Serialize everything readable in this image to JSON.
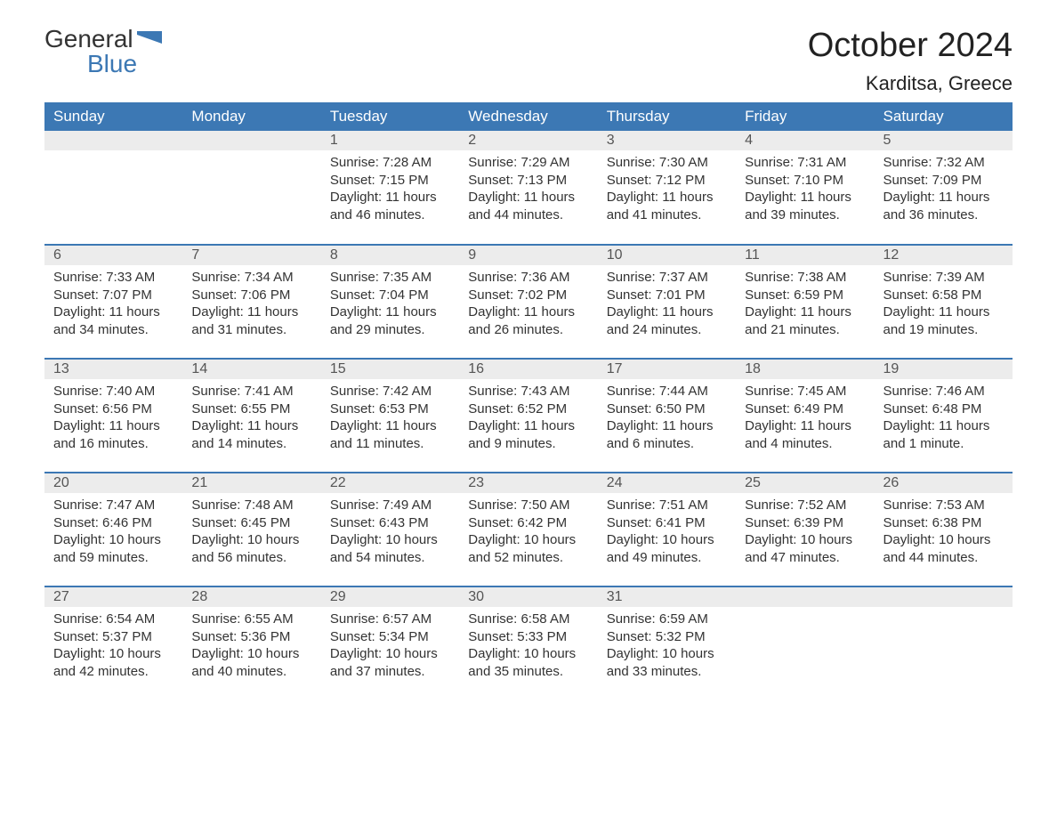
{
  "logo": {
    "text_top": "General",
    "text_bottom": "Blue",
    "flag_color": "#3c78b4"
  },
  "title": "October 2024",
  "location": "Karditsa, Greece",
  "colors": {
    "header_bg": "#3c78b4",
    "header_text": "#ffffff",
    "daynum_bg": "#ececec",
    "row_border": "#3c78b4",
    "body_text": "#333333",
    "page_bg": "#ffffff"
  },
  "typography": {
    "title_fontsize": 38,
    "location_fontsize": 22,
    "header_fontsize": 17,
    "daynum_fontsize": 16,
    "body_fontsize": 15
  },
  "weekdays": [
    "Sunday",
    "Monday",
    "Tuesday",
    "Wednesday",
    "Thursday",
    "Friday",
    "Saturday"
  ],
  "weeks": [
    [
      null,
      null,
      {
        "n": "1",
        "sunrise": "7:28 AM",
        "sunset": "7:15 PM",
        "daylight": "11 hours and 46 minutes."
      },
      {
        "n": "2",
        "sunrise": "7:29 AM",
        "sunset": "7:13 PM",
        "daylight": "11 hours and 44 minutes."
      },
      {
        "n": "3",
        "sunrise": "7:30 AM",
        "sunset": "7:12 PM",
        "daylight": "11 hours and 41 minutes."
      },
      {
        "n": "4",
        "sunrise": "7:31 AM",
        "sunset": "7:10 PM",
        "daylight": "11 hours and 39 minutes."
      },
      {
        "n": "5",
        "sunrise": "7:32 AM",
        "sunset": "7:09 PM",
        "daylight": "11 hours and 36 minutes."
      }
    ],
    [
      {
        "n": "6",
        "sunrise": "7:33 AM",
        "sunset": "7:07 PM",
        "daylight": "11 hours and 34 minutes."
      },
      {
        "n": "7",
        "sunrise": "7:34 AM",
        "sunset": "7:06 PM",
        "daylight": "11 hours and 31 minutes."
      },
      {
        "n": "8",
        "sunrise": "7:35 AM",
        "sunset": "7:04 PM",
        "daylight": "11 hours and 29 minutes."
      },
      {
        "n": "9",
        "sunrise": "7:36 AM",
        "sunset": "7:02 PM",
        "daylight": "11 hours and 26 minutes."
      },
      {
        "n": "10",
        "sunrise": "7:37 AM",
        "sunset": "7:01 PM",
        "daylight": "11 hours and 24 minutes."
      },
      {
        "n": "11",
        "sunrise": "7:38 AM",
        "sunset": "6:59 PM",
        "daylight": "11 hours and 21 minutes."
      },
      {
        "n": "12",
        "sunrise": "7:39 AM",
        "sunset": "6:58 PM",
        "daylight": "11 hours and 19 minutes."
      }
    ],
    [
      {
        "n": "13",
        "sunrise": "7:40 AM",
        "sunset": "6:56 PM",
        "daylight": "11 hours and 16 minutes."
      },
      {
        "n": "14",
        "sunrise": "7:41 AM",
        "sunset": "6:55 PM",
        "daylight": "11 hours and 14 minutes."
      },
      {
        "n": "15",
        "sunrise": "7:42 AM",
        "sunset": "6:53 PM",
        "daylight": "11 hours and 11 minutes."
      },
      {
        "n": "16",
        "sunrise": "7:43 AM",
        "sunset": "6:52 PM",
        "daylight": "11 hours and 9 minutes."
      },
      {
        "n": "17",
        "sunrise": "7:44 AM",
        "sunset": "6:50 PM",
        "daylight": "11 hours and 6 minutes."
      },
      {
        "n": "18",
        "sunrise": "7:45 AM",
        "sunset": "6:49 PM",
        "daylight": "11 hours and 4 minutes."
      },
      {
        "n": "19",
        "sunrise": "7:46 AM",
        "sunset": "6:48 PM",
        "daylight": "11 hours and 1 minute."
      }
    ],
    [
      {
        "n": "20",
        "sunrise": "7:47 AM",
        "sunset": "6:46 PM",
        "daylight": "10 hours and 59 minutes."
      },
      {
        "n": "21",
        "sunrise": "7:48 AM",
        "sunset": "6:45 PM",
        "daylight": "10 hours and 56 minutes."
      },
      {
        "n": "22",
        "sunrise": "7:49 AM",
        "sunset": "6:43 PM",
        "daylight": "10 hours and 54 minutes."
      },
      {
        "n": "23",
        "sunrise": "7:50 AM",
        "sunset": "6:42 PM",
        "daylight": "10 hours and 52 minutes."
      },
      {
        "n": "24",
        "sunrise": "7:51 AM",
        "sunset": "6:41 PM",
        "daylight": "10 hours and 49 minutes."
      },
      {
        "n": "25",
        "sunrise": "7:52 AM",
        "sunset": "6:39 PM",
        "daylight": "10 hours and 47 minutes."
      },
      {
        "n": "26",
        "sunrise": "7:53 AM",
        "sunset": "6:38 PM",
        "daylight": "10 hours and 44 minutes."
      }
    ],
    [
      {
        "n": "27",
        "sunrise": "6:54 AM",
        "sunset": "5:37 PM",
        "daylight": "10 hours and 42 minutes."
      },
      {
        "n": "28",
        "sunrise": "6:55 AM",
        "sunset": "5:36 PM",
        "daylight": "10 hours and 40 minutes."
      },
      {
        "n": "29",
        "sunrise": "6:57 AM",
        "sunset": "5:34 PM",
        "daylight": "10 hours and 37 minutes."
      },
      {
        "n": "30",
        "sunrise": "6:58 AM",
        "sunset": "5:33 PM",
        "daylight": "10 hours and 35 minutes."
      },
      {
        "n": "31",
        "sunrise": "6:59 AM",
        "sunset": "5:32 PM",
        "daylight": "10 hours and 33 minutes."
      },
      null,
      null
    ]
  ],
  "labels": {
    "sunrise": "Sunrise:",
    "sunset": "Sunset:",
    "daylight": "Daylight:"
  }
}
